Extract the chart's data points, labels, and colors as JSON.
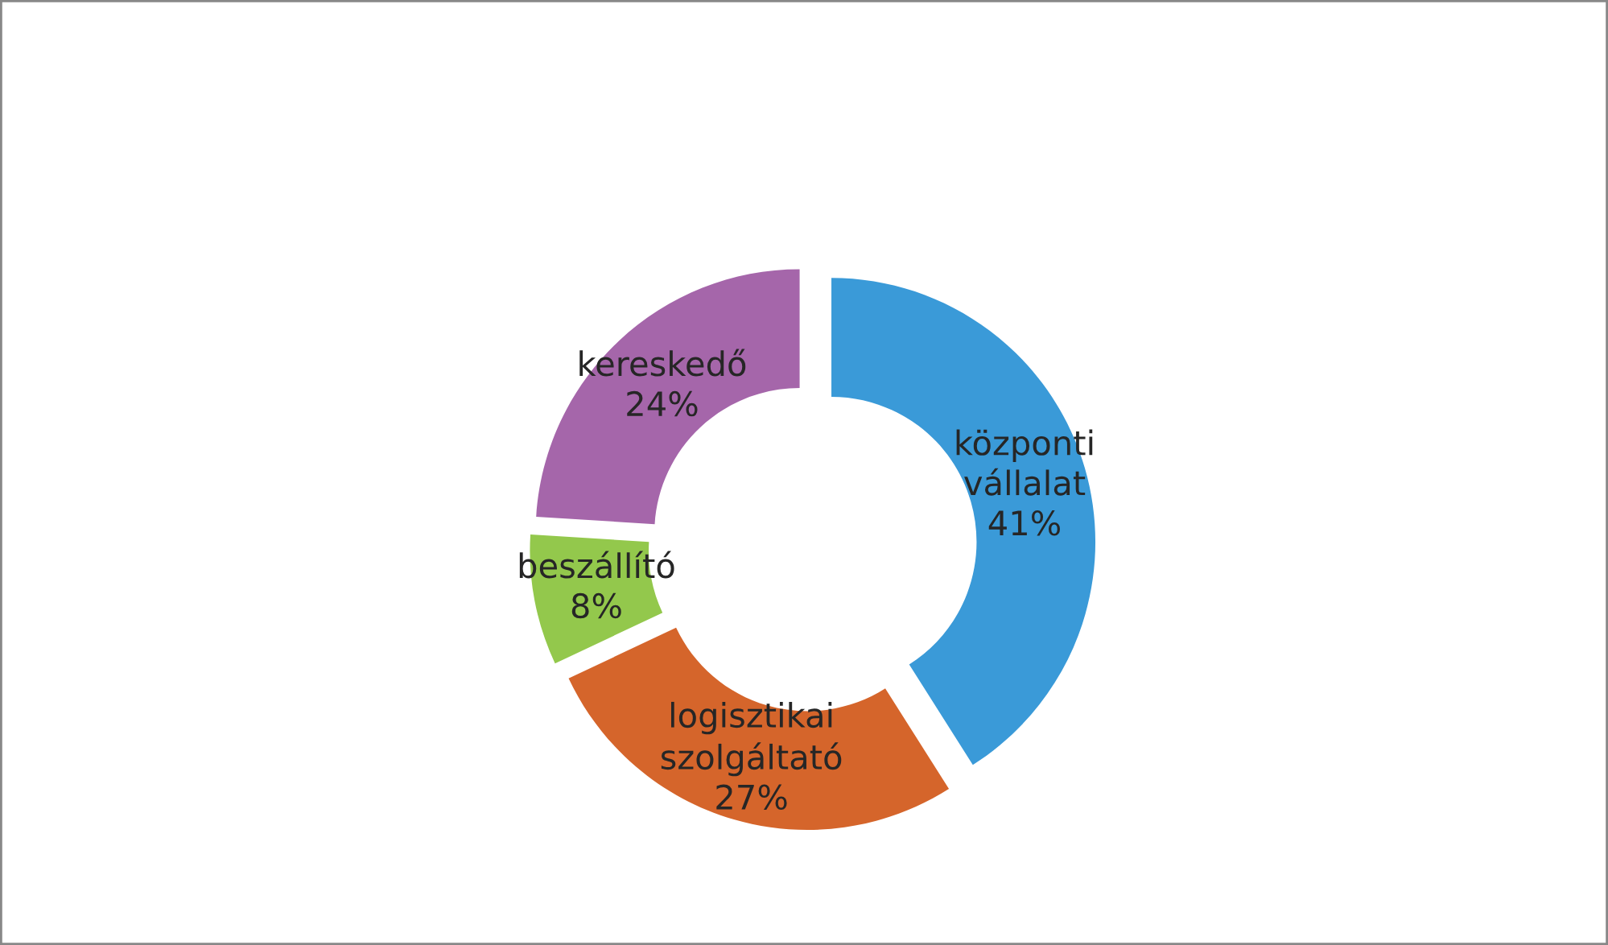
{
  "chart_data": {
    "type": "donut",
    "categories": [
      "központi vállalat",
      "logisztikai szolgáltató",
      "beszállító",
      "kereskedő"
    ],
    "values": [
      41,
      27,
      8,
      24
    ],
    "colors": [
      "#3a9ad8",
      "#d5652b",
      "#93c84c",
      "#a566aa"
    ],
    "value_labels": [
      "41%",
      "27%",
      "8%",
      "24%"
    ],
    "legend": false
  }
}
